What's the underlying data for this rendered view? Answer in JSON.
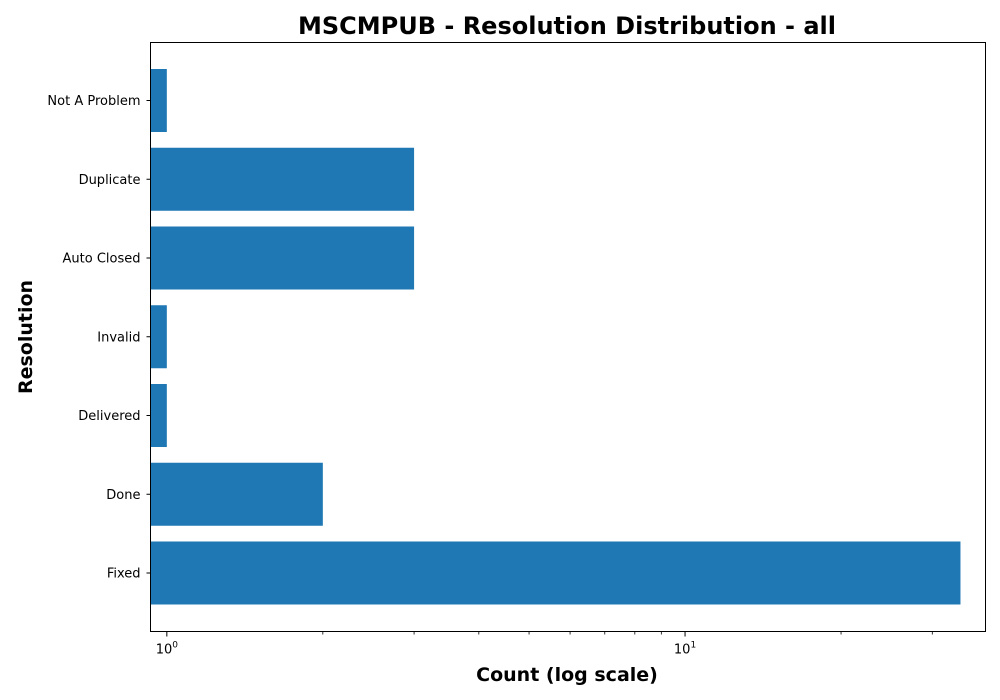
{
  "chart_data": {
    "type": "bar",
    "orientation": "horizontal",
    "title": "MSCMPUB - Resolution Distribution - all",
    "xlabel": "Count (log scale)",
    "ylabel": "Resolution",
    "xscale": "log",
    "xlim": [
      0.93,
      38
    ],
    "grid": false,
    "legend": "none",
    "categories": [
      "Fixed",
      "Done",
      "Delivered",
      "Invalid",
      "Auto Closed",
      "Duplicate",
      "Not A Problem"
    ],
    "values": [
      34,
      2,
      1,
      1,
      3,
      3,
      1
    ],
    "x_ticks": [
      {
        "value": 1,
        "base": "10",
        "exp": "0"
      },
      {
        "value": 10,
        "base": "10",
        "exp": "1"
      }
    ],
    "bar_color": "#1f77b4"
  }
}
